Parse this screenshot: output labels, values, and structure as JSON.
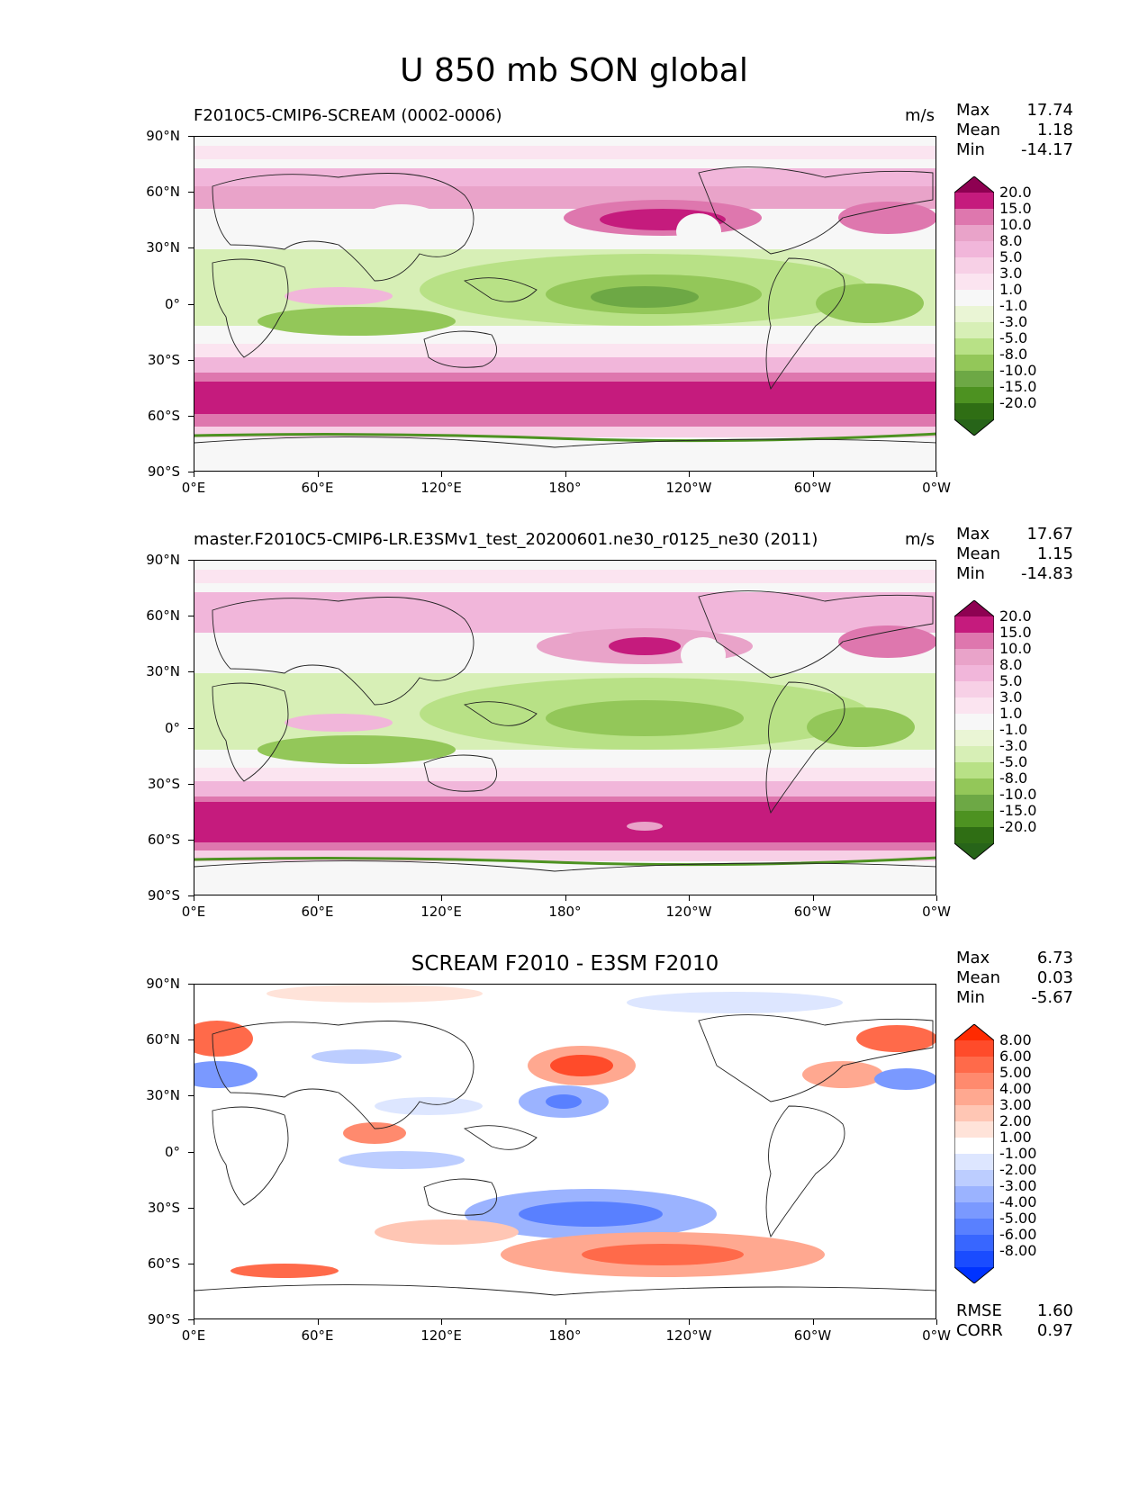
{
  "title": "U 850 mb SON global",
  "panels": [
    {
      "title": "F2010C5-CMIP6-SCREAM (0002-0006)",
      "units": "m/s",
      "stats": {
        "max_label": "Max",
        "max": "17.74",
        "mean_label": "Mean",
        "mean": "1.18",
        "min_label": "Min",
        "min": "-14.17"
      },
      "colorbar": {
        "labels": [
          "20.0",
          "15.0",
          "10.0",
          "8.0",
          "5.0",
          "3.0",
          "1.0",
          "-1.0",
          "-3.0",
          "-5.0",
          "-8.0",
          "-10.0",
          "-15.0",
          "-20.0"
        ],
        "colors": [
          "#8e0152",
          "#c51b7d",
          "#de77ae",
          "#e9a3c9",
          "#f1b6da",
          "#f7d0e6",
          "#fbe4f0",
          "#f7f7f7",
          "#eaf5d5",
          "#d7efb6",
          "#b8e186",
          "#93c759",
          "#6da845",
          "#4d9221",
          "#2f6e14",
          "#276419"
        ]
      }
    },
    {
      "title": "master.F2010C5-CMIP6-LR.E3SMv1_test_20200601.ne30_r0125_ne30 (2011)",
      "units": "m/s",
      "stats": {
        "max_label": "Max",
        "max": "17.67",
        "mean_label": "Mean",
        "mean": "1.15",
        "min_label": "Min",
        "min": "-14.83"
      },
      "colorbar": {
        "labels": [
          "20.0",
          "15.0",
          "10.0",
          "8.0",
          "5.0",
          "3.0",
          "1.0",
          "-1.0",
          "-3.0",
          "-5.0",
          "-8.0",
          "-10.0",
          "-15.0",
          "-20.0"
        ],
        "colors": [
          "#8e0152",
          "#c51b7d",
          "#de77ae",
          "#e9a3c9",
          "#f1b6da",
          "#f7d0e6",
          "#fbe4f0",
          "#f7f7f7",
          "#eaf5d5",
          "#d7efb6",
          "#b8e186",
          "#93c759",
          "#6da845",
          "#4d9221",
          "#2f6e14",
          "#276419"
        ]
      }
    },
    {
      "title": "SCREAM F2010 - E3SM F2010",
      "units": "",
      "stats": {
        "max_label": "Max",
        "max": "6.73",
        "mean_label": "Mean",
        "mean": "0.03",
        "min_label": "Min",
        "min": "-5.67"
      },
      "colorbar": {
        "labels": [
          "8.00",
          "6.00",
          "5.00",
          "4.00",
          "3.00",
          "2.00",
          "1.00",
          "-1.00",
          "-2.00",
          "-3.00",
          "-4.00",
          "-5.00",
          "-6.00",
          "-8.00"
        ],
        "colors": [
          "#ff2a00",
          "#ff4b2a",
          "#ff6a4a",
          "#ff8a6e",
          "#ffa890",
          "#ffc6b4",
          "#ffe3d9",
          "#ffffff",
          "#dde6ff",
          "#bccdff",
          "#9bb3ff",
          "#7a99ff",
          "#5980ff",
          "#3866ff",
          "#1a4cff",
          "#0033ff"
        ]
      },
      "rmse_label": "RMSE",
      "rmse": "1.60",
      "corr_label": "CORR",
      "corr": "0.97"
    }
  ],
  "axes": {
    "y_ticks": [
      "90°N",
      "60°N",
      "30°N",
      "0°",
      "30°S",
      "60°S",
      "90°S"
    ],
    "x_ticks": [
      "0°E",
      "60°E",
      "120°E",
      "180°",
      "120°W",
      "60°W",
      "0°W"
    ]
  }
}
